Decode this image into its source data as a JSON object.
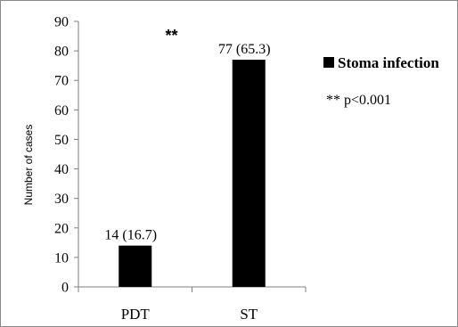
{
  "chart_data": {
    "type": "bar",
    "categories": [
      "PDT",
      "ST"
    ],
    "series": [
      {
        "name": "Stoma infection",
        "values": [
          14,
          77
        ],
        "color": "#000000",
        "labels": [
          "14 (16.7)",
          "77 (65.3)"
        ]
      }
    ],
    "title": "",
    "xlabel": "",
    "ylabel": "Number of cases",
    "ylim": [
      0,
      90
    ],
    "yticks": [
      0,
      10,
      20,
      30,
      40,
      50,
      60,
      70,
      80,
      90
    ],
    "grid": false,
    "legend": "right",
    "significance": {
      "marker": "**",
      "note": "** p<0.001"
    }
  }
}
